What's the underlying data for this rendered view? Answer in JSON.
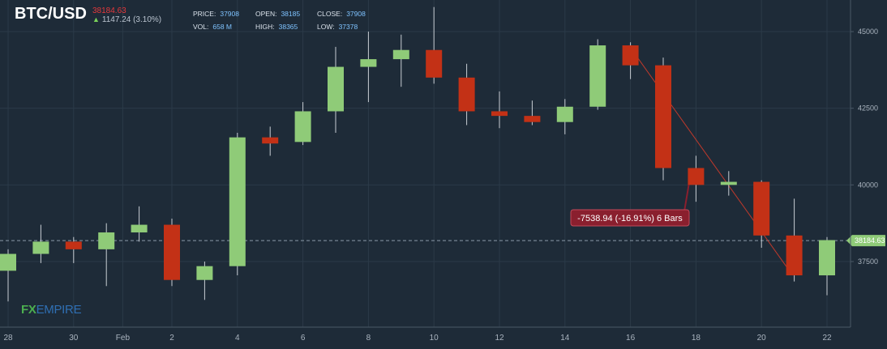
{
  "header": {
    "symbol": "BTC/USD",
    "last_price": "38184.63",
    "change": "1147.24 (3.10%)",
    "stats": [
      {
        "label": "PRICE:",
        "value": "37908"
      },
      {
        "label": "OPEN:",
        "value": "38185"
      },
      {
        "label": "CLOSE:",
        "value": "37908"
      },
      {
        "label": "VOL:",
        "value": "658 M"
      },
      {
        "label": "HIGH:",
        "value": "38365"
      },
      {
        "label": "LOW:",
        "value": "37378"
      }
    ]
  },
  "logo": {
    "fx": "FX",
    "empire": "EMPIRE"
  },
  "colors": {
    "background": "#1e2b38",
    "up": "#8fcb78",
    "down": "#c33116",
    "grid": "#2b3a48",
    "measure": "#8a1f2e",
    "price_tag": "#8fcb78"
  },
  "chart_data": {
    "type": "candlestick",
    "y_ticks": [
      "45000",
      "42500",
      "40000",
      "37500"
    ],
    "ylim": [
      35500,
      46000
    ],
    "x_ticks": [
      {
        "label": "28",
        "index": 0
      },
      {
        "label": "30",
        "index": 2
      },
      {
        "label": "Feb",
        "index": 3.5
      },
      {
        "label": "2",
        "index": 5
      },
      {
        "label": "4",
        "index": 7
      },
      {
        "label": "6",
        "index": 9
      },
      {
        "label": "8",
        "index": 11
      },
      {
        "label": "10",
        "index": 13
      },
      {
        "label": "12",
        "index": 15
      },
      {
        "label": "14",
        "index": 17
      },
      {
        "label": "16",
        "index": 19
      },
      {
        "label": "18",
        "index": 21
      },
      {
        "label": "20",
        "index": 23
      },
      {
        "label": "22",
        "index": 25
      }
    ],
    "candles": [
      {
        "o": 37200,
        "h": 37900,
        "l": 36200,
        "c": 37750
      },
      {
        "o": 37750,
        "h": 38700,
        "l": 37450,
        "c": 38150
      },
      {
        "o": 38150,
        "h": 38300,
        "l": 37450,
        "c": 37900
      },
      {
        "o": 37900,
        "h": 38750,
        "l": 36700,
        "c": 38450
      },
      {
        "o": 38450,
        "h": 39300,
        "l": 38150,
        "c": 38700
      },
      {
        "o": 38700,
        "h": 38900,
        "l": 36700,
        "c": 36900
      },
      {
        "o": 36900,
        "h": 37500,
        "l": 36250,
        "c": 37350
      },
      {
        "o": 37350,
        "h": 41700,
        "l": 37050,
        "c": 41550
      },
      {
        "o": 41550,
        "h": 41900,
        "l": 40950,
        "c": 41350
      },
      {
        "o": 41400,
        "h": 42700,
        "l": 41300,
        "c": 42400
      },
      {
        "o": 42400,
        "h": 44500,
        "l": 41700,
        "c": 43850
      },
      {
        "o": 43850,
        "h": 45000,
        "l": 42700,
        "c": 44100
      },
      {
        "o": 44100,
        "h": 44900,
        "l": 43200,
        "c": 44400
      },
      {
        "o": 44400,
        "h": 45800,
        "l": 43300,
        "c": 43500
      },
      {
        "o": 43500,
        "h": 43950,
        "l": 41950,
        "c": 42400
      },
      {
        "o": 42400,
        "h": 43050,
        "l": 41850,
        "c": 42250
      },
      {
        "o": 42250,
        "h": 42750,
        "l": 41950,
        "c": 42050
      },
      {
        "o": 42050,
        "h": 42800,
        "l": 41650,
        "c": 42550
      },
      {
        "o": 42550,
        "h": 44750,
        "l": 42450,
        "c": 44550
      },
      {
        "o": 44550,
        "h": 44650,
        "l": 43450,
        "c": 43900
      },
      {
        "o": 43900,
        "h": 44150,
        "l": 40150,
        "c": 40550
      },
      {
        "o": 40550,
        "h": 40950,
        "l": 39450,
        "c": 40000
      },
      {
        "o": 40000,
        "h": 40450,
        "l": 39650,
        "c": 40100
      },
      {
        "o": 40100,
        "h": 40150,
        "l": 37950,
        "c": 38350
      },
      {
        "o": 38350,
        "h": 39550,
        "l": 36850,
        "c": 37050
      },
      {
        "o": 37050,
        "h": 38300,
        "l": 36400,
        "c": 38200
      }
    ],
    "current_price": {
      "value": 38184.63,
      "label": "38184.63"
    },
    "measure": {
      "from_index": 19,
      "to_index": 24,
      "from_value": 44550,
      "to_value": 37050,
      "label": "-7538.94 (-16.91%) 6 Bars"
    }
  }
}
